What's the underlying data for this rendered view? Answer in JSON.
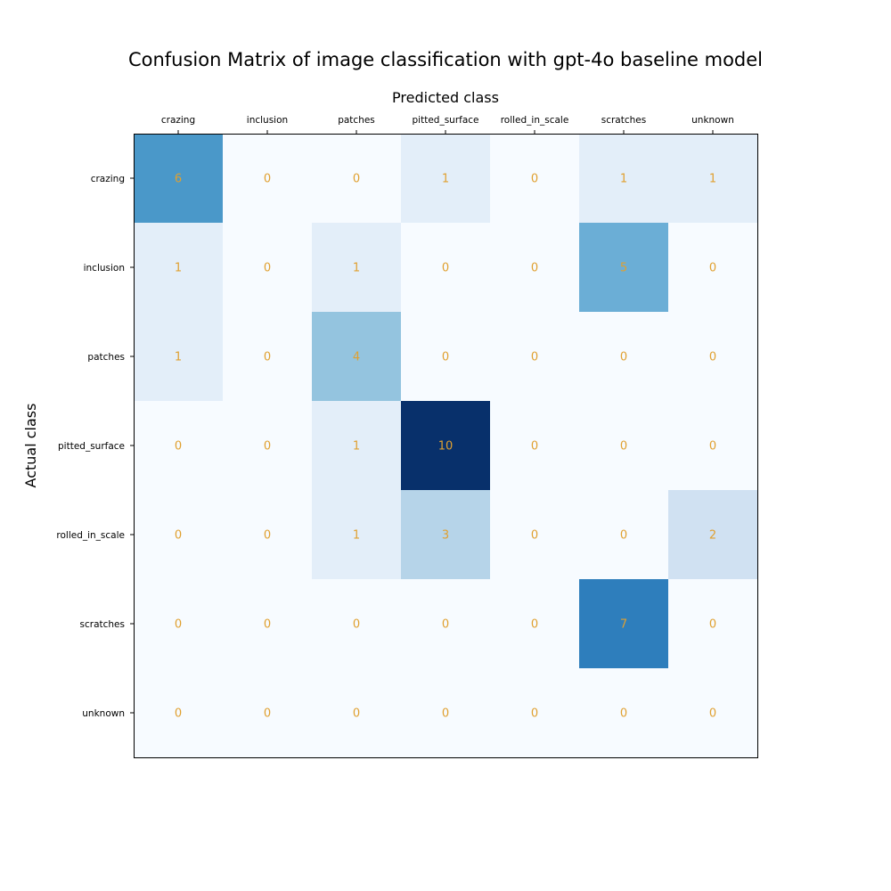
{
  "chart_data": {
    "type": "heatmap",
    "title": "Confusion Matrix of image classification with gpt-4o baseline model",
    "xlabel": "Predicted class",
    "ylabel": "Actual class",
    "x_categories": [
      "crazing",
      "inclusion",
      "patches",
      "pitted_surface",
      "rolled_in_scale",
      "scratches",
      "unknown"
    ],
    "y_categories": [
      "crazing",
      "inclusion",
      "patches",
      "pitted_surface",
      "rolled_in_scale",
      "scratches",
      "unknown"
    ],
    "values": [
      [
        6,
        0,
        0,
        1,
        0,
        1,
        1
      ],
      [
        1,
        0,
        1,
        0,
        0,
        5,
        0
      ],
      [
        1,
        0,
        4,
        0,
        0,
        0,
        0
      ],
      [
        0,
        0,
        1,
        10,
        0,
        0,
        0
      ],
      [
        0,
        0,
        1,
        3,
        0,
        0,
        2
      ],
      [
        0,
        0,
        0,
        0,
        0,
        7,
        0
      ],
      [
        0,
        0,
        0,
        0,
        0,
        0,
        0
      ]
    ],
    "colormap": "Blues",
    "value_range": [
      0,
      10
    ],
    "cell_text_color": "#e0a030",
    "x_axis_position": "top",
    "grid": false,
    "colorbar": false
  }
}
